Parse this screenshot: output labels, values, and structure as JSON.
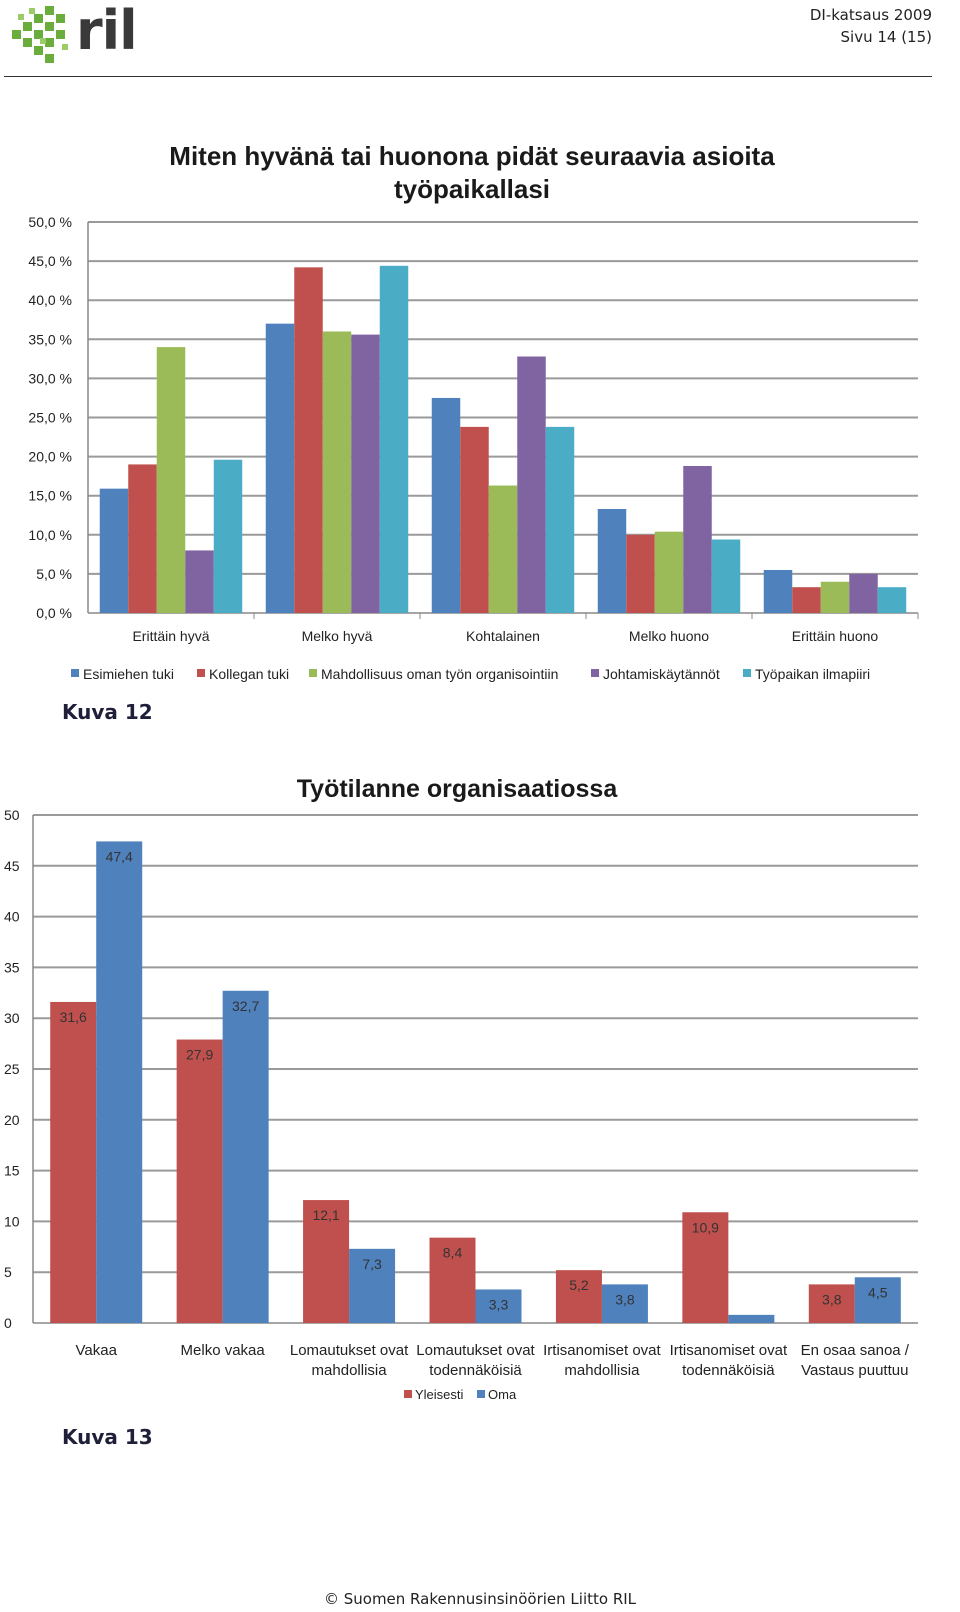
{
  "header": {
    "org_logo": "RIL logo (green cube pattern)",
    "logo_text": "ril",
    "line1": "DI-katsaus 2009",
    "line2": "Sivu 14 (15)"
  },
  "captions": {
    "fig12": "Kuva 12",
    "fig13": "Kuva 13"
  },
  "footer": {
    "text": "© Suomen Rakennusinsinöörien Liitto RIL"
  },
  "chart_data": [
    {
      "type": "bar",
      "title": "Miten hyvänä tai huonona pidät seuraavia asioita työpaikallasi",
      "title_lines": [
        "Miten hyvänä tai huonona pidät seuraavia asioita",
        "työpaikallasi"
      ],
      "categories": [
        "Erittäin hyvä",
        "Melko hyvä",
        "Kohtalainen",
        "Melko huono",
        "Erittäin huono"
      ],
      "ylim": [
        0,
        50
      ],
      "yticks": [
        "0,0 %",
        "5,0 %",
        "10,0 %",
        "15,0 %",
        "20,0 %",
        "25,0 %",
        "30,0 %",
        "35,0 %",
        "40,0 %",
        "45,0 %",
        "50,0 %"
      ],
      "grid": true,
      "legend_position": "bottom",
      "series": [
        {
          "name": "Esimiehen tuki",
          "color": "#4f81bd",
          "values": [
            15.9,
            37.0,
            27.5,
            13.3,
            5.5
          ]
        },
        {
          "name": "Kollegan tuki",
          "color": "#c0504d",
          "values": [
            19.0,
            44.2,
            23.8,
            10.0,
            3.3
          ]
        },
        {
          "name": "Mahdollisuus oman työn organisointiin",
          "color": "#9bbb59",
          "values": [
            34.0,
            36.0,
            16.3,
            10.4,
            4.0
          ]
        },
        {
          "name": "Johtamiskäytännöt",
          "color": "#8064a2",
          "values": [
            8.0,
            35.6,
            32.8,
            18.8,
            5.0
          ]
        },
        {
          "name": "Työpaikan ilmapiiri",
          "color": "#4bacc6",
          "values": [
            19.6,
            44.4,
            23.8,
            9.4,
            3.3
          ]
        }
      ]
    },
    {
      "type": "bar",
      "title": "Työtilanne organisaatiossa",
      "categories": [
        [
          "Vakaa"
        ],
        [
          "Melko vakaa"
        ],
        [
          "Lomautukset ovat",
          "mahdollisia"
        ],
        [
          "Lomautukset ovat",
          "todennäköisiä"
        ],
        [
          "Irtisanomiset ovat",
          "mahdollisia"
        ],
        [
          "Irtisanomiset ovat",
          "todennäköisiä"
        ],
        [
          "En osaa sanoa /",
          "Vastaus puuttuu"
        ]
      ],
      "ylim": [
        0,
        50
      ],
      "yticks": [
        "0",
        "5",
        "10",
        "15",
        "20",
        "25",
        "30",
        "35",
        "40",
        "45",
        "50"
      ],
      "grid": true,
      "legend_position": "bottom",
      "series": [
        {
          "name": "Yleisesti",
          "color": "#c0504d",
          "values": [
            31.6,
            27.9,
            12.1,
            8.4,
            5.2,
            10.9,
            3.8
          ],
          "labels": [
            "31,6",
            "27,9",
            "12,1",
            "8,4",
            "5,2",
            "10,9",
            "3,8"
          ]
        },
        {
          "name": "Oma",
          "color": "#4f81bd",
          "values": [
            47.4,
            32.7,
            7.3,
            3.3,
            3.8,
            0.8,
            4.5
          ],
          "labels": [
            "47,4",
            "32,7",
            "7,3",
            "3,3",
            "3,8",
            "",
            "4,5"
          ]
        }
      ]
    }
  ]
}
